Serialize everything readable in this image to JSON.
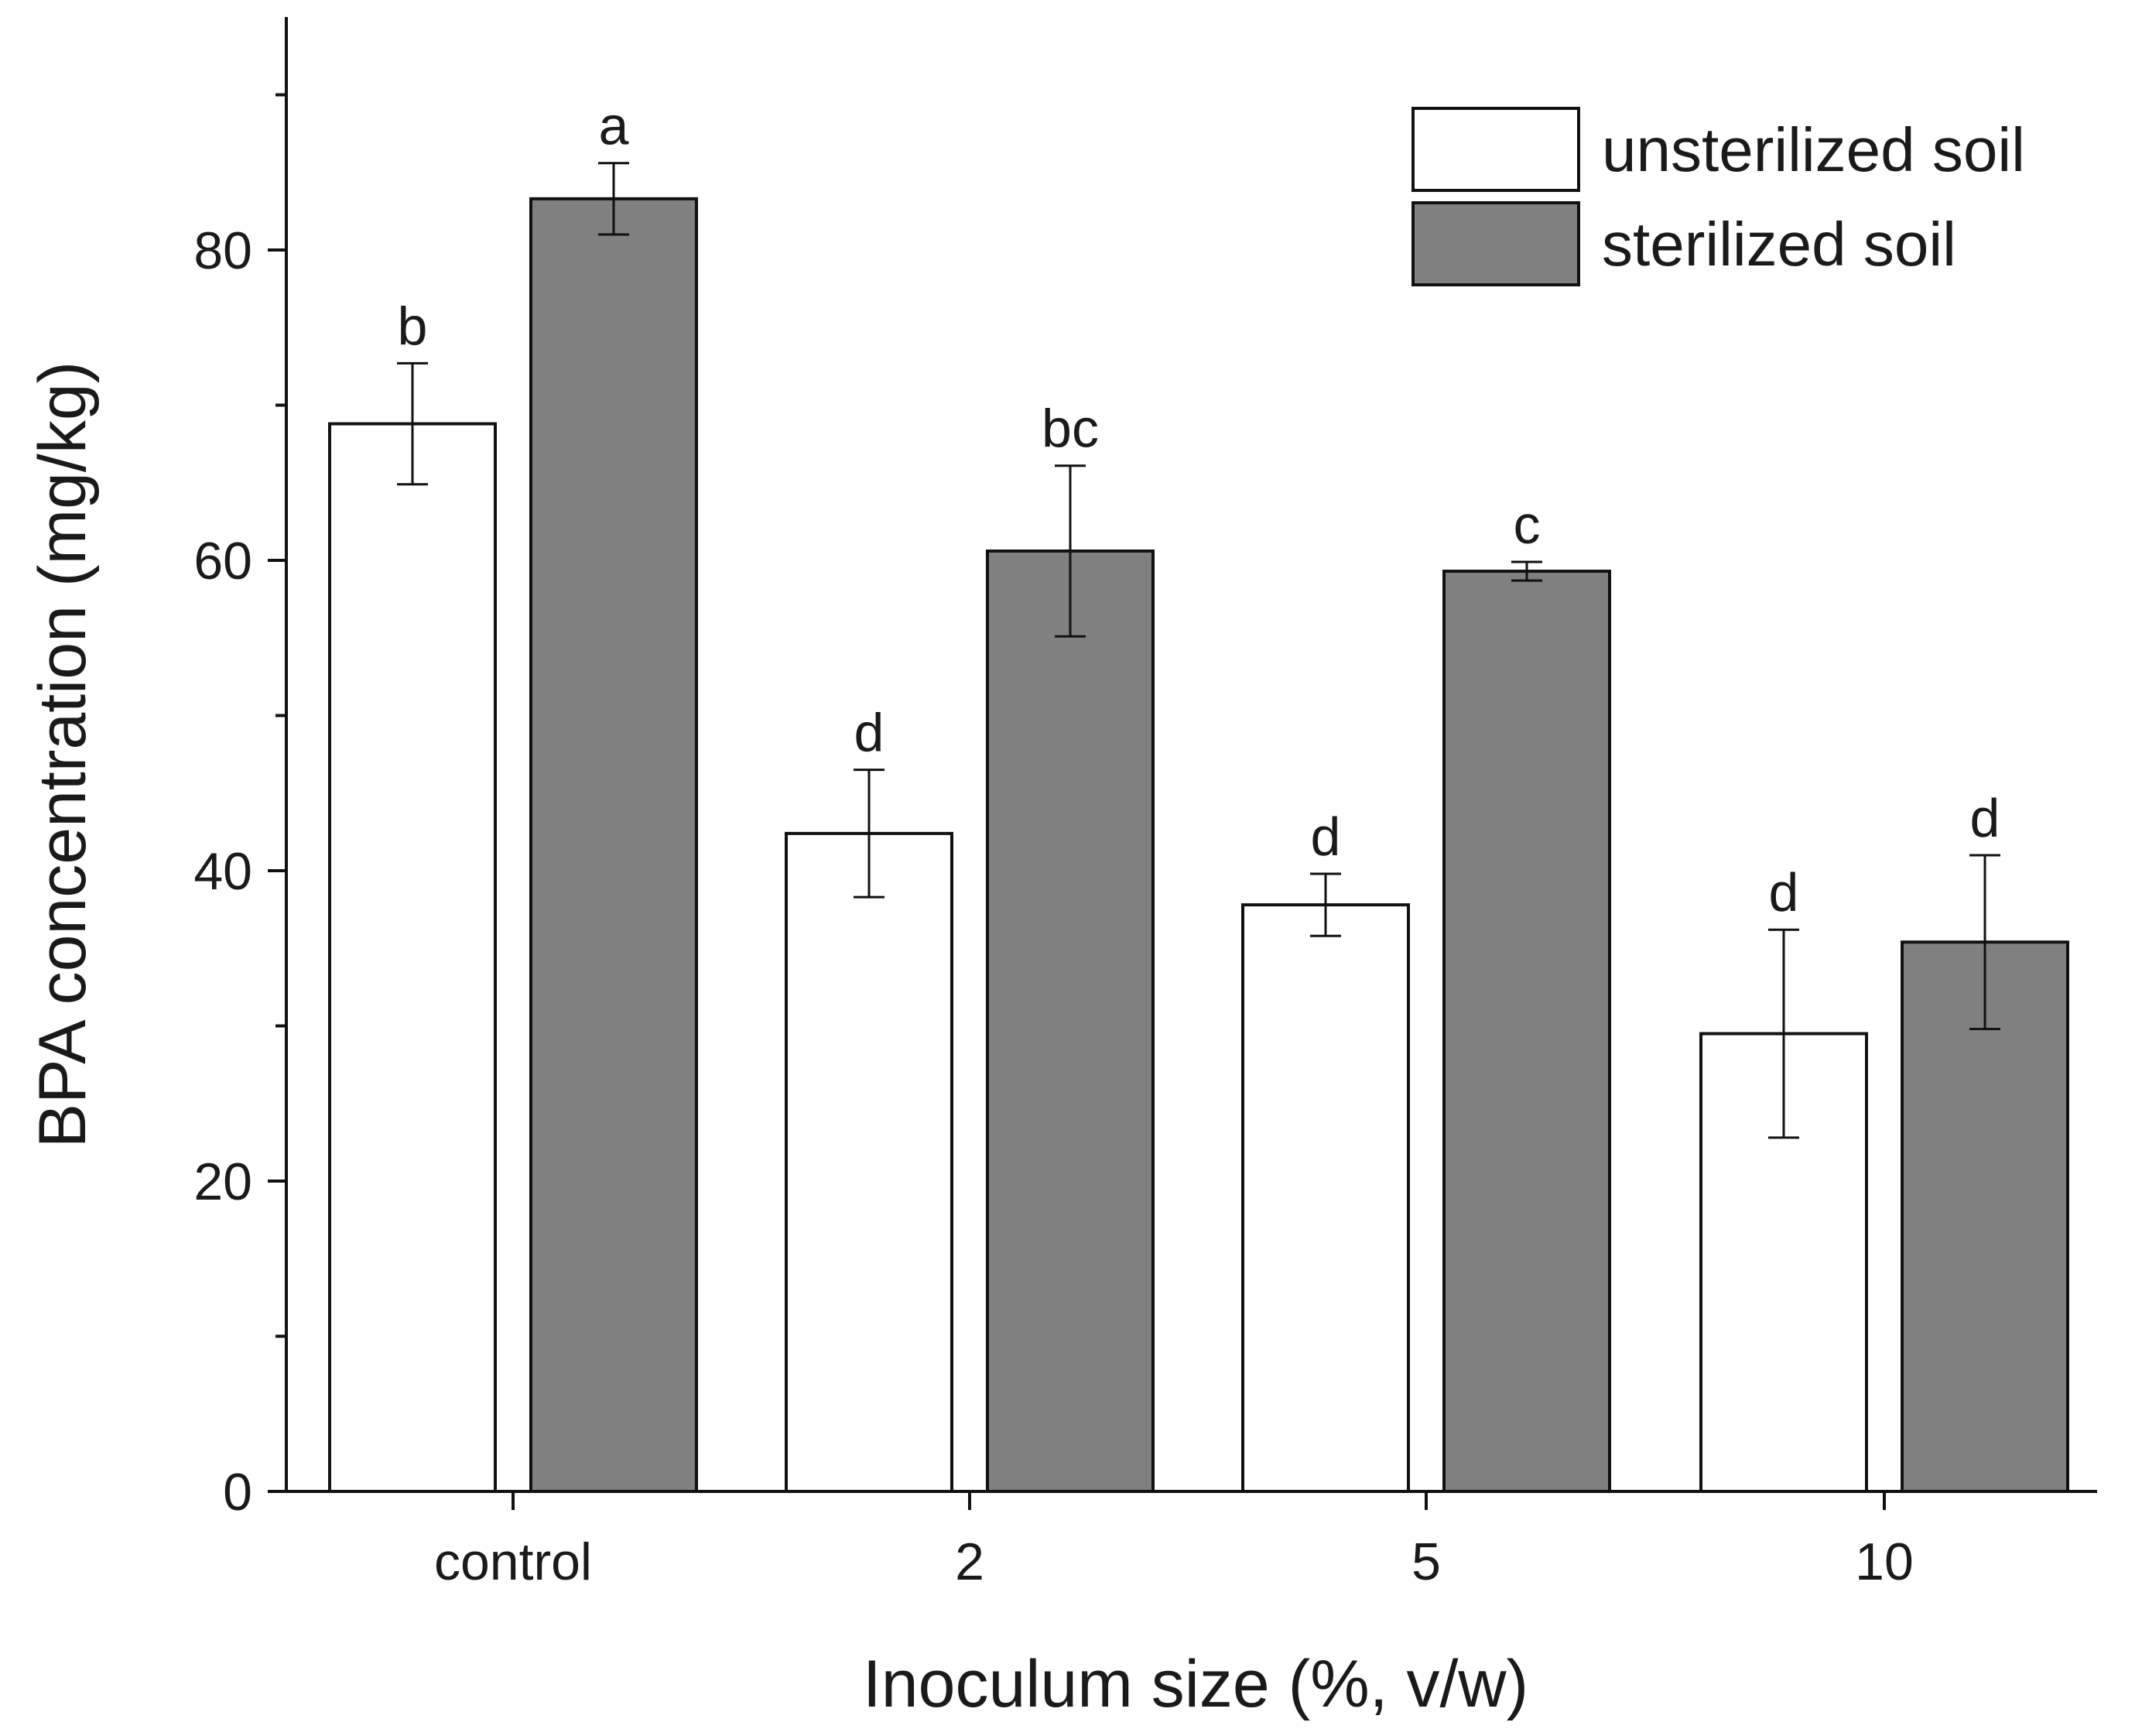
{
  "chart_data": {
    "type": "bar",
    "title": "",
    "xlabel": "Inoculum size (%, v/w)",
    "ylabel": "BPA concentration (mg/kg)",
    "categories": [
      "control",
      "2",
      "5",
      "10"
    ],
    "ylim": [
      0,
      96
    ],
    "yticks": [
      0,
      20,
      40,
      60,
      80
    ],
    "yticks_minor": [
      10,
      30,
      50,
      70,
      90
    ],
    "grid": false,
    "legend_position": "top-right",
    "series": [
      {
        "name": "unsterilized soil",
        "color": "#ffffff",
        "values": [
          68.8,
          42.4,
          37.8,
          29.5
        ],
        "errors": [
          3.9,
          4.1,
          2.0,
          6.7
        ],
        "significance": [
          "b",
          "d",
          "d",
          "d"
        ]
      },
      {
        "name": "sterilized soil",
        "color": "#808080",
        "values": [
          83.3,
          60.6,
          59.3,
          35.4
        ],
        "errors": [
          2.3,
          5.5,
          0.6,
          5.6
        ],
        "significance": [
          "a",
          "bc",
          "c",
          "d"
        ]
      }
    ]
  }
}
